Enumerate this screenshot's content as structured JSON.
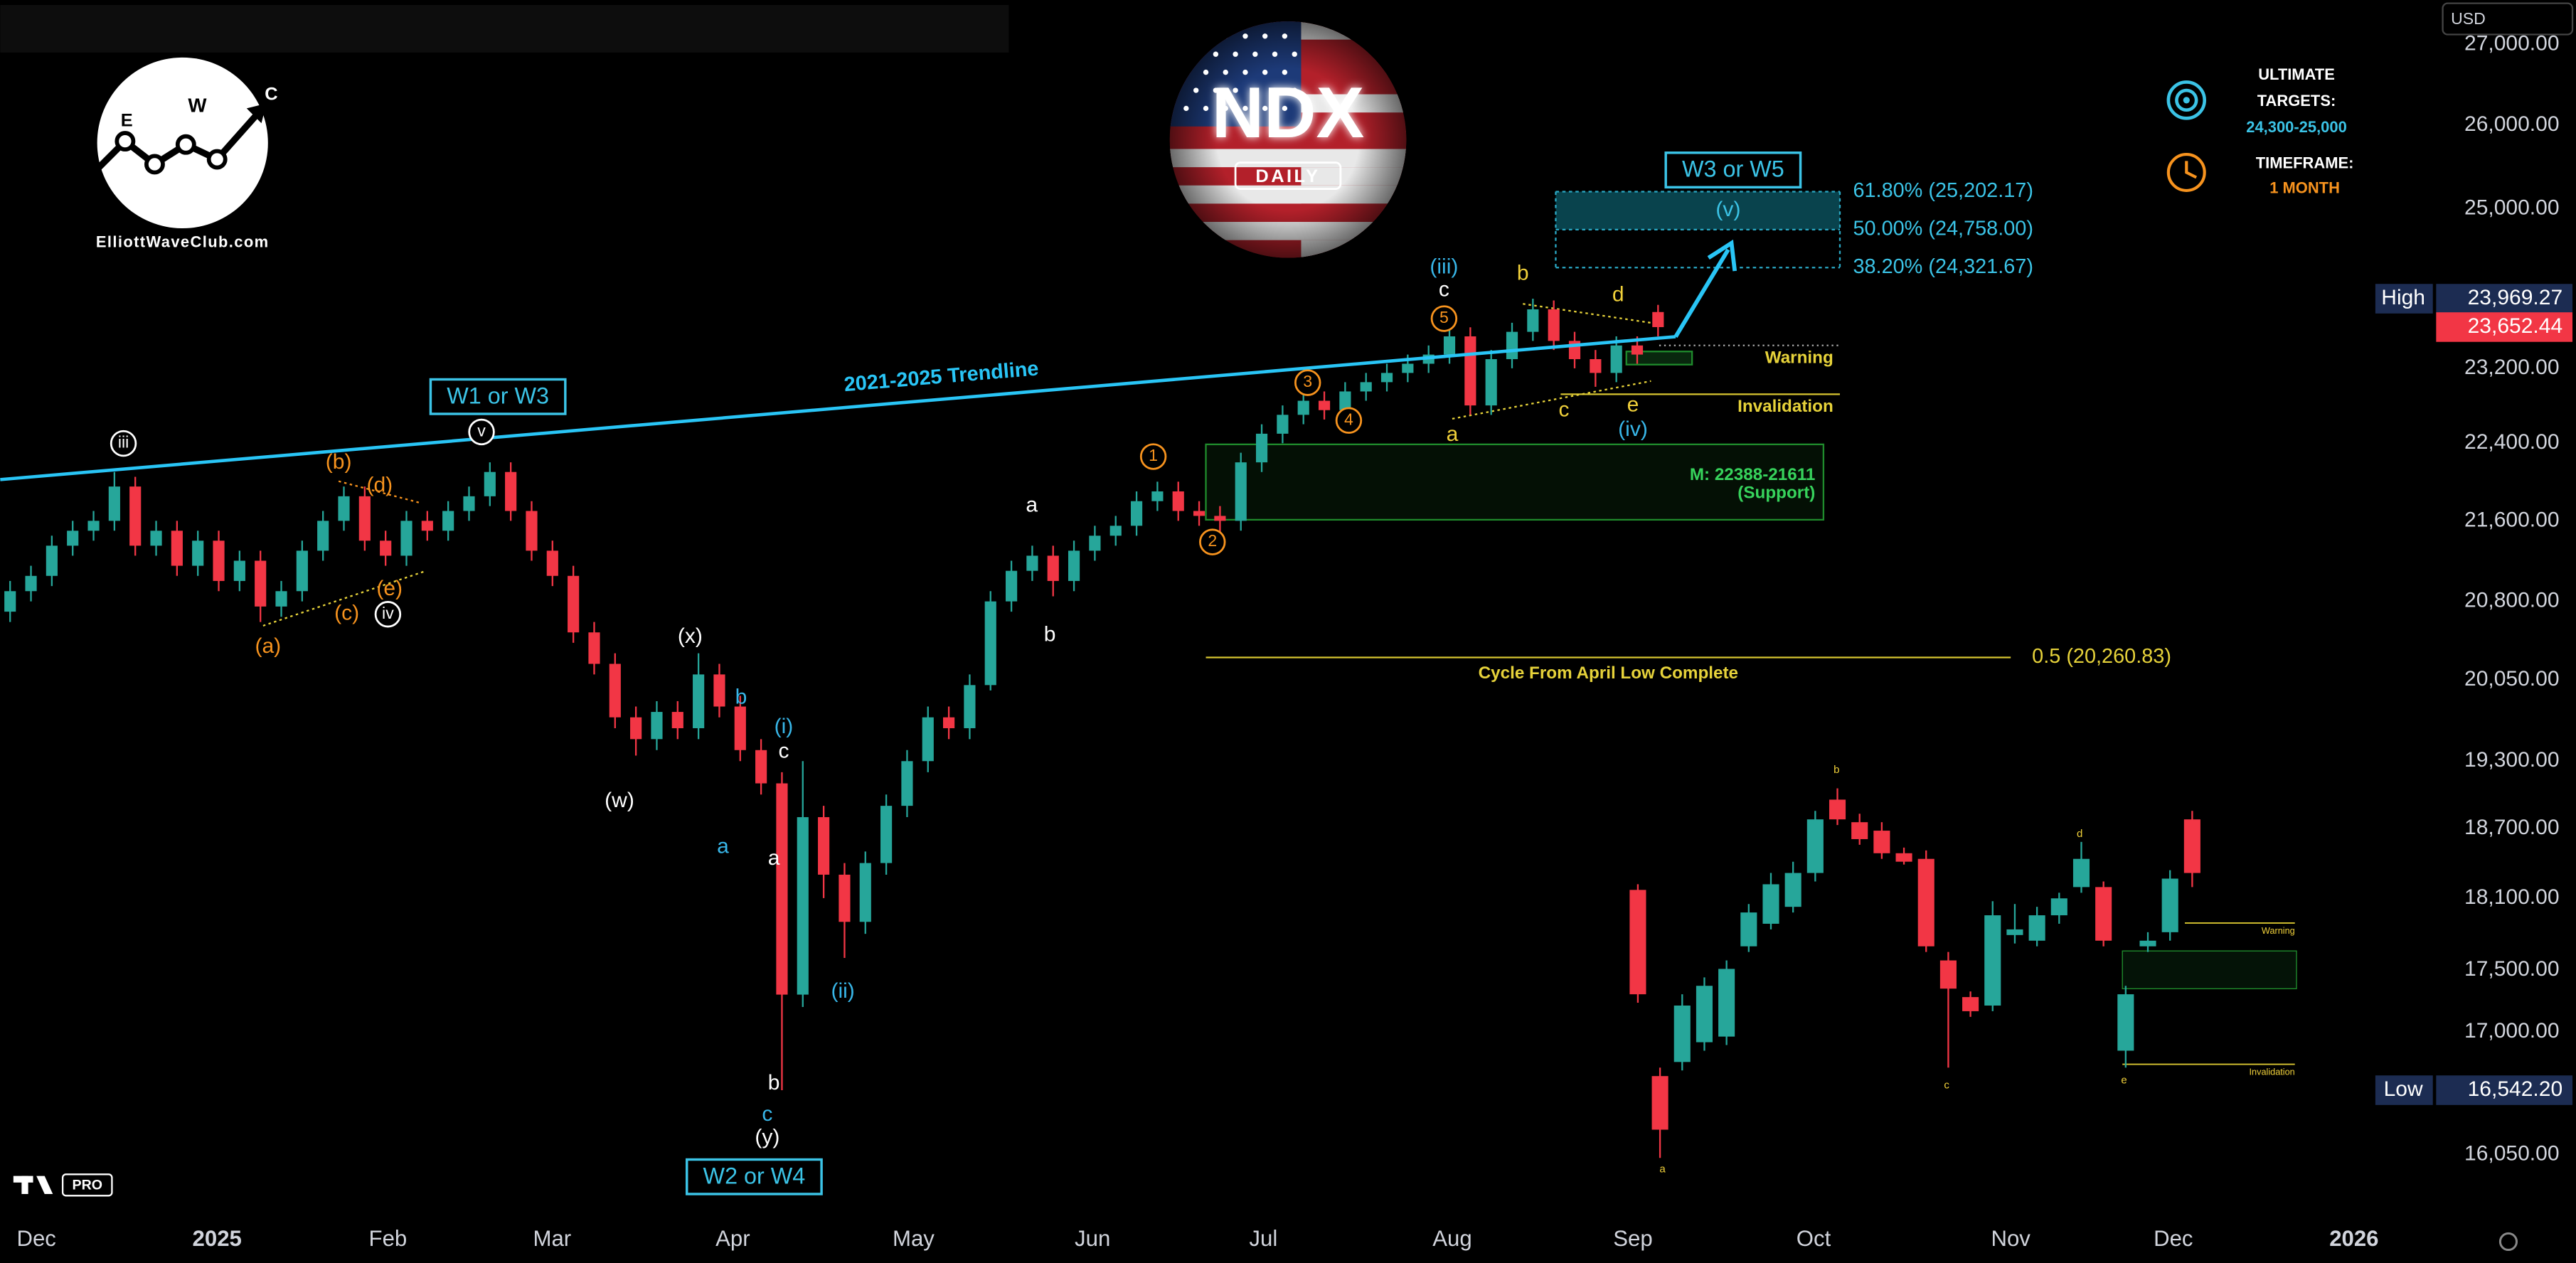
{
  "currency": "USD",
  "logo": {
    "letters": [
      "E",
      "W",
      "C"
    ],
    "site": "ElliottWaveClub.com"
  },
  "badge": {
    "symbol": "NDX",
    "timeframe": "DAILY"
  },
  "targets": {
    "title_lines": [
      "ULTIMATE",
      "TARGETS:"
    ],
    "range": "24,300-25,000",
    "timeframe_title": "TIMEFRAME:",
    "timeframe": "1 MONTH"
  },
  "platform_badge": "PRO",
  "chart_data": {
    "type": "candlestick",
    "log_scale": true,
    "ylim": [
      15600,
      27570
    ],
    "yticks": [
      {
        "value": 27000,
        "label": "27,000.00"
      },
      {
        "value": 26000,
        "label": "26,000.00"
      },
      {
        "value": 25000,
        "label": "25,000.00"
      },
      {
        "value": 23200,
        "label": "23,200.00"
      },
      {
        "value": 22400,
        "label": "22,400.00"
      },
      {
        "value": 21600,
        "label": "21,600.00"
      },
      {
        "value": 20800,
        "label": "20,800.00"
      },
      {
        "value": 20050,
        "label": "20,050.00"
      },
      {
        "value": 19300,
        "label": "19,300.00"
      },
      {
        "value": 18700,
        "label": "18,700.00"
      },
      {
        "value": 18100,
        "label": "18,100.00"
      },
      {
        "value": 17500,
        "label": "17,500.00"
      },
      {
        "value": 17000,
        "label": "17,000.00"
      },
      {
        "value": 16050,
        "label": "16,050.00"
      }
    ],
    "x_labels": [
      "Dec",
      "2025",
      "Feb",
      "Mar",
      "Apr",
      "May",
      "Jun",
      "Jul",
      "Aug",
      "Sep",
      "Oct",
      "Nov",
      "Dec",
      "2026"
    ],
    "up_color": "#26a69a",
    "down_color": "#f23645",
    "open": [
      20700,
      20900,
      21050,
      21350,
      21500,
      21600,
      21950,
      21350,
      21500,
      21150,
      21400,
      21000,
      21200,
      20750,
      20900,
      21300,
      21600,
      21850,
      21400,
      21250,
      21600,
      21500,
      21700,
      21850,
      22100,
      21700,
      21300,
      21050,
      20500,
      20200,
      19700,
      19500,
      19750,
      19600,
      20100,
      19800,
      19400,
      19100,
      17300,
      18800,
      18300,
      17900,
      18400,
      18900,
      19300,
      19700,
      19600,
      20000,
      20800,
      21100,
      21250,
      21000,
      21300,
      21450,
      21550,
      21800,
      21900,
      21700,
      21650,
      21600,
      22200,
      22500,
      22700,
      22850,
      22750,
      22950,
      23050,
      23150,
      23250,
      23350,
      23550,
      22800,
      23300,
      23600,
      23850,
      23500,
      23300,
      23150,
      23450,
      23820
    ],
    "high": [
      21000,
      21150,
      21450,
      21600,
      21700,
      22100,
      22050,
      21600,
      21600,
      21500,
      21500,
      21300,
      21300,
      21000,
      21400,
      21700,
      21950,
      21950,
      21500,
      21700,
      21700,
      21800,
      21950,
      22200,
      22200,
      21800,
      21400,
      21150,
      20600,
      20300,
      19800,
      19850,
      19850,
      20300,
      20200,
      19900,
      19500,
      19200,
      19300,
      18900,
      18400,
      18500,
      19000,
      19400,
      19800,
      19800,
      20100,
      20900,
      21200,
      21350,
      21350,
      21400,
      21550,
      21650,
      21900,
      22000,
      22000,
      21800,
      21750,
      22300,
      22600,
      22800,
      22950,
      22950,
      23050,
      23150,
      23250,
      23350,
      23450,
      23650,
      23650,
      23400,
      23700,
      23969.27,
      23950,
      23600,
      23400,
      23550,
      23550,
      23900
    ],
    "low": [
      20600,
      20800,
      20950,
      21250,
      21400,
      21500,
      21250,
      21250,
      21050,
      21050,
      20900,
      20900,
      20600,
      20650,
      20800,
      21200,
      21500,
      21300,
      21150,
      21150,
      21400,
      21400,
      21600,
      21750,
      21600,
      21200,
      20950,
      20400,
      20100,
      19600,
      19350,
      19400,
      19500,
      19500,
      19700,
      19300,
      19000,
      16542.2,
      17200,
      18100,
      17600,
      17800,
      18300,
      18800,
      19200,
      19500,
      19500,
      19950,
      20700,
      21000,
      20850,
      20900,
      21200,
      21350,
      21450,
      21700,
      21600,
      21550,
      21450,
      21500,
      22100,
      22400,
      22600,
      22650,
      22650,
      22850,
      22950,
      23050,
      23150,
      23250,
      22700,
      22700,
      23200,
      23500,
      23400,
      23200,
      23000,
      23050,
      23250,
      23550
    ],
    "close": [
      20900,
      21050,
      21350,
      21500,
      21600,
      21950,
      21350,
      21500,
      21150,
      21400,
      21000,
      21200,
      20750,
      20900,
      21300,
      21600,
      21850,
      21400,
      21250,
      21600,
      21500,
      21700,
      21850,
      22100,
      21700,
      21300,
      21050,
      20500,
      20200,
      19700,
      19500,
      19750,
      19600,
      20100,
      19800,
      19400,
      19100,
      17300,
      18800,
      18300,
      17900,
      18400,
      18900,
      19300,
      19700,
      19600,
      20000,
      20800,
      21100,
      21250,
      21000,
      21300,
      21450,
      21550,
      21800,
      21900,
      21700,
      21650,
      21600,
      22200,
      22500,
      22700,
      22850,
      22750,
      22950,
      23050,
      23150,
      23250,
      23350,
      23550,
      22800,
      23300,
      23600,
      23850,
      23500,
      23300,
      23150,
      23450,
      23350,
      23652.44
    ],
    "high_marker": {
      "label": "High",
      "value": 23969.27,
      "value_label": "23,969.27"
    },
    "last_price": {
      "value": 23652.44,
      "value_label": "23,652.44"
    },
    "low_marker": {
      "label": "Low",
      "value": 16542.2,
      "value_label": "16,542.20"
    },
    "fib_levels": [
      {
        "label": "61.80% (25,202.17)",
        "value": 25202.17
      },
      {
        "label": "50.00% (24,758.00)",
        "value": 24758
      },
      {
        "label": "38.20% (24,321.67)",
        "value": 24321.67
      }
    ],
    "target_label": "W3 or W5",
    "target_wave": "(v)",
    "support": {
      "label": "M: 22388-21611",
      "note": "(Support)",
      "high": 22388,
      "low": 21611
    },
    "warning": {
      "label": "Warning",
      "value": 23450
    },
    "invalidation": {
      "label": "Invalidation",
      "value": 22920
    },
    "cycle_level": {
      "label": "0.5 (20,260.83)",
      "value": 20260.83,
      "note": "Cycle From April Low Complete"
    },
    "trendline_label": "2021-2025 Trendline",
    "wave_boxes": [
      "W1 or W3",
      "W2 or W4"
    ],
    "wave_labels": [
      "iii",
      "v",
      "iv",
      "(x)",
      "(w)",
      "(y)",
      "b",
      "a",
      "c",
      "a",
      "b",
      "c",
      "b",
      "a",
      "(i)",
      "(ii)",
      "c",
      "(iii)",
      "(iv)",
      "(a)",
      "(b)",
      "(c)",
      "(d)",
      "(e)",
      "1",
      "2",
      "3",
      "4",
      "5",
      "a",
      "b",
      "c",
      "d",
      "e"
    ],
    "inset": {
      "open": [
        23620,
        22960,
        23010,
        23080,
        23100,
        23420,
        23500,
        23560,
        23680,
        23940,
        23860,
        23830,
        23750,
        23730,
        23370,
        23240,
        23210,
        23460,
        23440,
        23530,
        23630,
        23630,
        23050,
        23420,
        23470,
        23870
      ],
      "high": [
        23640,
        22990,
        23250,
        23310,
        23370,
        23570,
        23680,
        23720,
        23900,
        23980,
        23890,
        23860,
        23770,
        23760,
        23400,
        23260,
        23580,
        23570,
        23560,
        23610,
        23790,
        23650,
        23280,
        23470,
        23690,
        23900
      ],
      "low": [
        23220,
        22670,
        22980,
        23050,
        23070,
        23400,
        23480,
        23540,
        23650,
        23850,
        23780,
        23730,
        23710,
        23400,
        22990,
        23170,
        23190,
        23430,
        23420,
        23500,
        23610,
        23420,
        22990,
        23400,
        23440,
        23630
      ],
      "close": [
        23250,
        22770,
        23210,
        23280,
        23340,
        23540,
        23640,
        23680,
        23870,
        23870,
        23800,
        23750,
        23720,
        23420,
        23270,
        23190,
        23530,
        23480,
        23530,
        23590,
        23730,
        23440,
        23250,
        23440,
        23660,
        23680
      ],
      "labels": [
        "b",
        "a",
        "c",
        "d",
        "e"
      ],
      "warning": "Warning",
      "invalidation": "Invalidation"
    }
  }
}
